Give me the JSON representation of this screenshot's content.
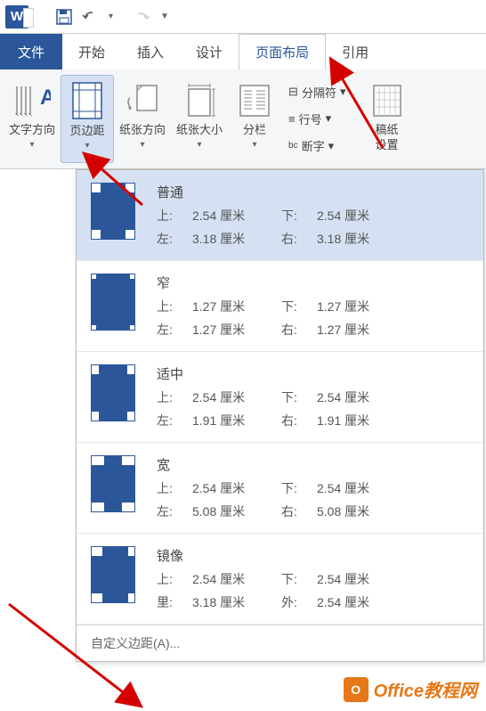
{
  "titlebar": {
    "qat_dropdown": "▼"
  },
  "tabs": {
    "file": "文件",
    "home": "开始",
    "insert": "插入",
    "design": "设计",
    "layout": "页面布局",
    "references": "引用"
  },
  "ribbon": {
    "text_direction": "文字方向",
    "margins": "页边距",
    "orientation": "纸张方向",
    "size": "纸张大小",
    "columns": "分栏",
    "breaks": "分隔符",
    "line_numbers": "行号",
    "hyphenation": "断字",
    "manuscript": "稿纸",
    "manuscript_settings": "设置",
    "dropdown": "▾",
    "bc_prefix": "bc"
  },
  "margins_panel": {
    "options": [
      {
        "name": "普通",
        "thumb": "thumb-normal",
        "selected": true,
        "labels": [
          "上:",
          "下:",
          "左:",
          "右:"
        ],
        "values": [
          "2.54 厘米",
          "2.54 厘米",
          "3.18 厘米",
          "3.18 厘米"
        ]
      },
      {
        "name": "窄",
        "thumb": "thumb-narrow",
        "selected": false,
        "labels": [
          "上:",
          "下:",
          "左:",
          "右:"
        ],
        "values": [
          "1.27 厘米",
          "1.27 厘米",
          "1.27 厘米",
          "1.27 厘米"
        ]
      },
      {
        "name": "适中",
        "thumb": "thumb-moderate",
        "selected": false,
        "labels": [
          "上:",
          "下:",
          "左:",
          "右:"
        ],
        "values": [
          "2.54 厘米",
          "2.54 厘米",
          "1.91 厘米",
          "1.91 厘米"
        ]
      },
      {
        "name": "宽",
        "thumb": "thumb-wide",
        "selected": false,
        "labels": [
          "上:",
          "下:",
          "左:",
          "右:"
        ],
        "values": [
          "2.54 厘米",
          "2.54 厘米",
          "5.08 厘米",
          "5.08 厘米"
        ]
      },
      {
        "name": "镜像",
        "thumb": "thumb-mirror",
        "selected": false,
        "labels": [
          "上:",
          "下:",
          "里:",
          "外:"
        ],
        "values": [
          "2.54 厘米",
          "2.54 厘米",
          "3.18 厘米",
          "2.54 厘米"
        ]
      }
    ],
    "custom": "自定义边距(A)..."
  },
  "watermark": {
    "text": "Office教程网",
    "logo": "O"
  },
  "colors": {
    "brand": "#2b579a",
    "highlight_bg": "#d5e1f2",
    "highlight_border": "#a3bde3",
    "ribbon_bg": "#f5f6f7",
    "arrow": "#d40000",
    "watermark": "#e67817"
  }
}
